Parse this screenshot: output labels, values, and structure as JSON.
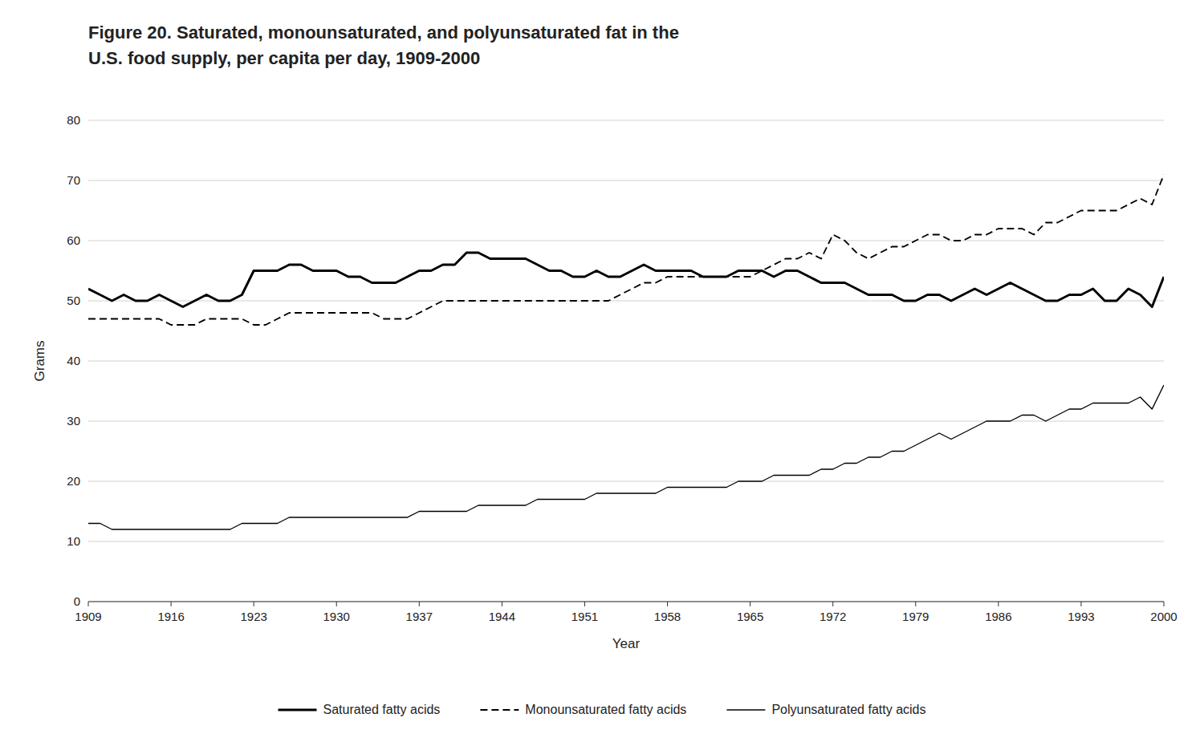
{
  "chart_data": {
    "type": "line",
    "title": "Figure 20. Saturated, monounsaturated, and polyunsaturated fat in the",
    "subtitle": "U.S. food supply, per capita per day, 1909-2000",
    "x_label": "Year",
    "y_label": "Grams",
    "x": [
      1909,
      1910,
      1911,
      1912,
      1913,
      1914,
      1915,
      1916,
      1917,
      1918,
      1919,
      1920,
      1921,
      1922,
      1923,
      1924,
      1925,
      1926,
      1927,
      1928,
      1929,
      1930,
      1931,
      1932,
      1933,
      1934,
      1935,
      1936,
      1937,
      1938,
      1939,
      1940,
      1941,
      1942,
      1943,
      1944,
      1945,
      1946,
      1947,
      1948,
      1949,
      1950,
      1951,
      1952,
      1953,
      1954,
      1955,
      1956,
      1957,
      1958,
      1959,
      1960,
      1961,
      1962,
      1963,
      1964,
      1965,
      1966,
      1967,
      1968,
      1969,
      1970,
      1971,
      1972,
      1973,
      1974,
      1975,
      1976,
      1977,
      1978,
      1979,
      1980,
      1981,
      1982,
      1983,
      1984,
      1985,
      1986,
      1987,
      1988,
      1989,
      1990,
      1991,
      1992,
      1993,
      1994,
      1995,
      1996,
      1997,
      1998,
      1999,
      2000
    ],
    "series": [
      {
        "name": "Saturated fatty acids",
        "color": "#000000",
        "line_style": "solid",
        "values": [
          52,
          51,
          50,
          51,
          50,
          50,
          51,
          50,
          49,
          50,
          51,
          50,
          50,
          51,
          55,
          55,
          55,
          56,
          56,
          55,
          55,
          55,
          54,
          54,
          53,
          53,
          53,
          54,
          55,
          55,
          56,
          56,
          58,
          58,
          57,
          57,
          57,
          57,
          56,
          55,
          55,
          54,
          54,
          55,
          54,
          54,
          55,
          56,
          55,
          55,
          55,
          55,
          54,
          54,
          54,
          55,
          55,
          55,
          54,
          55,
          55,
          54,
          53,
          53,
          53,
          52,
          51,
          51,
          51,
          50,
          50,
          51,
          51,
          50,
          51,
          52,
          51,
          52,
          53,
          52,
          51,
          50,
          50,
          51,
          51,
          52,
          50,
          50,
          52,
          51,
          49,
          54
        ]
      },
      {
        "name": "Monounsaturated fatty acids",
        "color": "#000000",
        "line_style": "dashed",
        "values": [
          47,
          47,
          47,
          47,
          47,
          47,
          47,
          46,
          46,
          46,
          47,
          47,
          47,
          47,
          46,
          46,
          47,
          48,
          48,
          48,
          48,
          48,
          48,
          48,
          48,
          47,
          47,
          47,
          48,
          49,
          50,
          50,
          50,
          50,
          50,
          50,
          50,
          50,
          50,
          50,
          50,
          50,
          50,
          50,
          50,
          51,
          52,
          53,
          53,
          54,
          54,
          54,
          54,
          54,
          54,
          54,
          54,
          55,
          56,
          57,
          57,
          58,
          57,
          61,
          60,
          58,
          57,
          58,
          59,
          59,
          60,
          61,
          61,
          60,
          60,
          61,
          61,
          62,
          62,
          62,
          61,
          63,
          63,
          64,
          65,
          65,
          65,
          65,
          66,
          67,
          66,
          71
        ]
      },
      {
        "name": "Polyunsaturated fatty acids",
        "color": "#000000",
        "line_style": "solid",
        "values": [
          13,
          13,
          12,
          12,
          12,
          12,
          12,
          12,
          12,
          12,
          12,
          12,
          12,
          13,
          13,
          13,
          13,
          14,
          14,
          14,
          14,
          14,
          14,
          14,
          14,
          14,
          14,
          14,
          15,
          15,
          15,
          15,
          15,
          16,
          16,
          16,
          16,
          16,
          17,
          17,
          17,
          17,
          17,
          18,
          18,
          18,
          18,
          18,
          18,
          19,
          19,
          19,
          19,
          19,
          19,
          20,
          20,
          20,
          21,
          21,
          21,
          21,
          22,
          22,
          23,
          23,
          24,
          24,
          25,
          25,
          26,
          27,
          28,
          27,
          28,
          29,
          30,
          30,
          30,
          31,
          31,
          30,
          31,
          32,
          32,
          33,
          33,
          33,
          33,
          34,
          32,
          36
        ]
      }
    ],
    "xlim": [
      1909,
      2000
    ],
    "xticks": [
      1909,
      1916,
      1923,
      1930,
      1937,
      1944,
      1951,
      1958,
      1965,
      1972,
      1979,
      1986,
      1993,
      2000
    ],
    "ylim": [
      0,
      80
    ],
    "yticks": [
      0,
      10,
      20,
      30,
      40,
      50,
      60,
      70,
      80
    ],
    "grid": true,
    "legend": "bottom"
  }
}
